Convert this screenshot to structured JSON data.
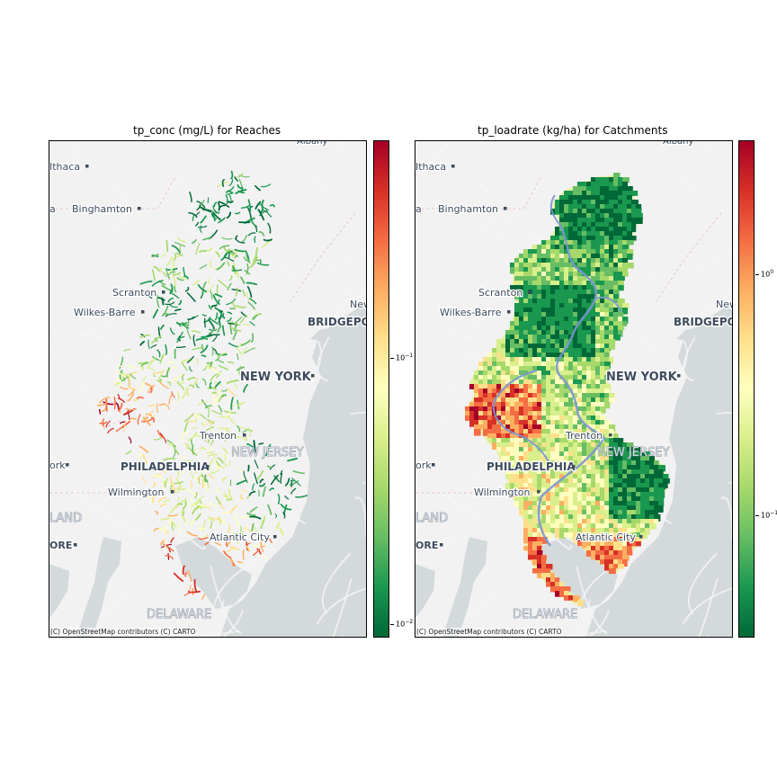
{
  "figure": {
    "left_panel": {
      "title": "tp_conc (mg/L) for Reaches",
      "attribution": "(C) OpenStreetMap contributors (C) CARTO",
      "colorbar": {
        "scale": "log",
        "colormap": "RdYlGn_r",
        "ticks": [
          {
            "base": "10",
            "exp": "−1"
          },
          {
            "base": "10",
            "exp": "−2"
          }
        ]
      }
    },
    "right_panel": {
      "title": "tp_loadrate (kg/ha) for Catchments",
      "attribution": "(C) OpenStreetMap contributors (C) CARTO",
      "colorbar": {
        "scale": "log",
        "colormap": "RdYlGn_r",
        "ticks": [
          {
            "base": "10",
            "exp": "0"
          },
          {
            "base": "10",
            "exp": "−1"
          }
        ]
      }
    },
    "map_labels": {
      "albany": "Albany",
      "ithaca": "Ithaca",
      "binghamton": "Binghamton",
      "scranton": "Scranton",
      "wilkes_barre": "Wilkes-Barre",
      "bridgeport": "BRIDGEPO",
      "new_haven": "New",
      "new_york": "NEW YORK",
      "trenton": "Trenton",
      "new_jersey": "NEW JERSEY",
      "philadelphia": "PHILADELPHIA",
      "york": "ork",
      "wilmington": "Wilmington",
      "maryland": "LAND",
      "baltimore": "ORE",
      "atlantic_city": "Atlantic City",
      "delaware": "DELAWARE",
      "left_edge_a": "a"
    },
    "colors": {
      "water": "#d4dadc",
      "land": "#f2f2f2",
      "road": "#ffffff",
      "label": "#3d4b5c",
      "state_label": "#a9b3bf",
      "river": "#7b96d1"
    }
  }
}
